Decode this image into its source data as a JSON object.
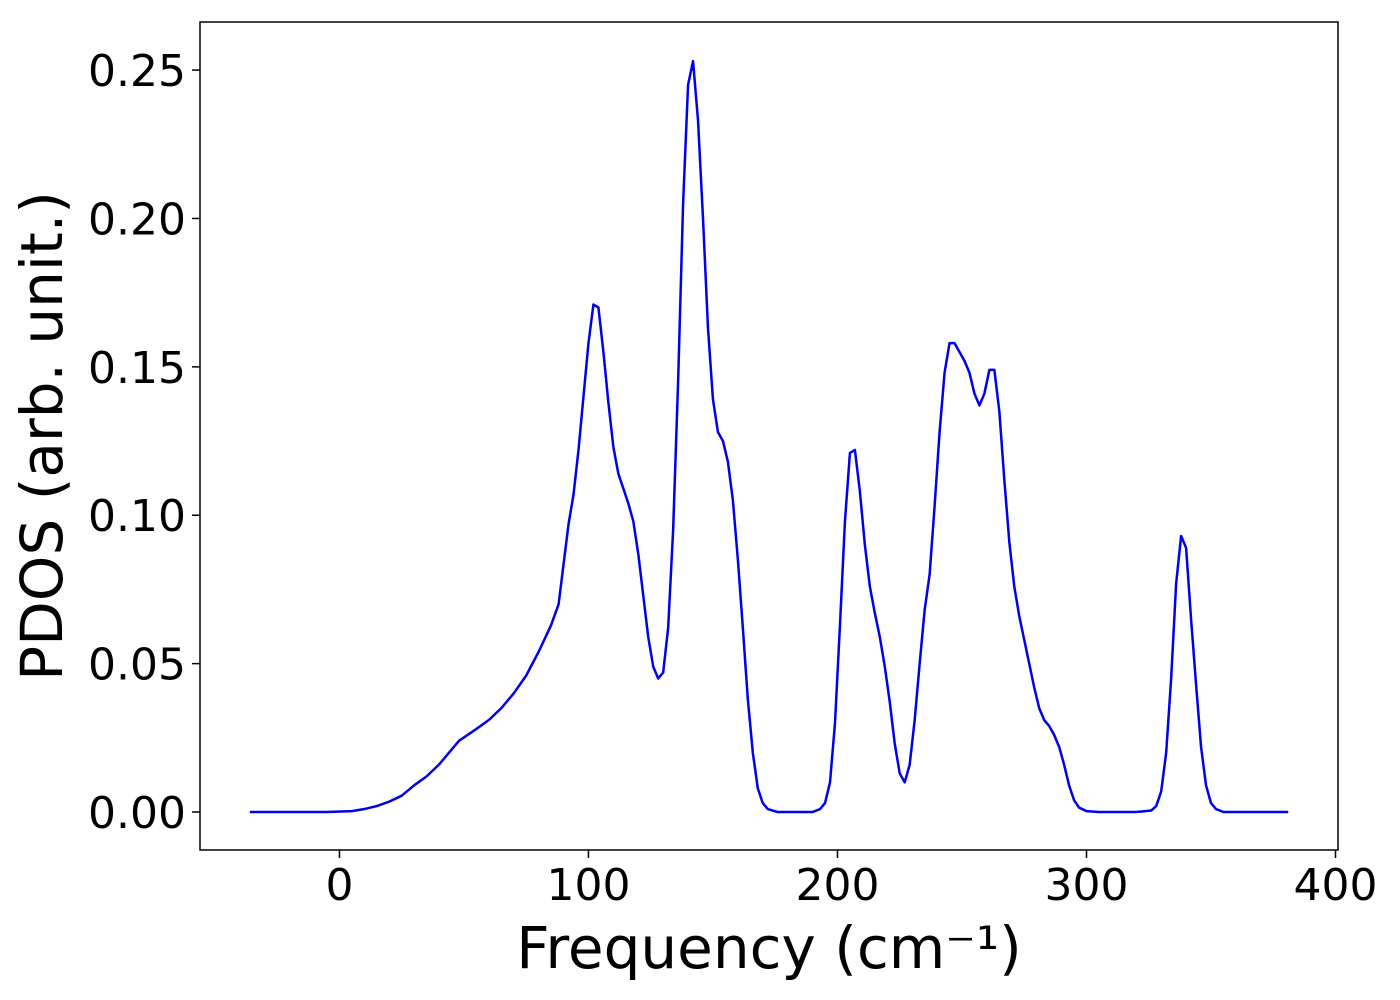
{
  "chart_data": {
    "type": "line",
    "xlabel": "Frequency (cm⁻¹)",
    "ylabel": "PDOS (arb. unit.)",
    "xlim": [
      -56,
      401
    ],
    "ylim": [
      -0.0128,
      0.2662
    ],
    "xticks": [
      0,
      100,
      200,
      300,
      400
    ],
    "yticks": [
      {
        "value": 0,
        "label": "0.00"
      },
      {
        "value": 0.05,
        "label": "0.05"
      },
      {
        "value": 0.1,
        "label": "0.10"
      },
      {
        "value": 0.15,
        "label": "0.15"
      },
      {
        "value": 0.2,
        "label": "0.20"
      },
      {
        "value": 0.25,
        "label": "0.25"
      }
    ],
    "x": [
      -36,
      -20,
      -5,
      5,
      10,
      15,
      20,
      25,
      30,
      35,
      40,
      45,
      48,
      55,
      60,
      65,
      70,
      75,
      80,
      85,
      88,
      92,
      94,
      96,
      98,
      100,
      102,
      104,
      106,
      108,
      110,
      112,
      114,
      116,
      118,
      120,
      122,
      124,
      126,
      128,
      130,
      132,
      134,
      136,
      138,
      140,
      142,
      144,
      146,
      148,
      150,
      152,
      154,
      156,
      158,
      160,
      162,
      164,
      166,
      168,
      170,
      172,
      176,
      190,
      193,
      195,
      197,
      199,
      201,
      203,
      205,
      207,
      209,
      211,
      213,
      215,
      217,
      219,
      221,
      223,
      225,
      227,
      229,
      231,
      233,
      235,
      237,
      239,
      241,
      243,
      245,
      247,
      249,
      251,
      253,
      255,
      257,
      259,
      261,
      263,
      265,
      267,
      269,
      271,
      273,
      275,
      277,
      279,
      281,
      283,
      285,
      287,
      289,
      291,
      293,
      295,
      297,
      300,
      305,
      320,
      326,
      328,
      330,
      332,
      334,
      336,
      338,
      340,
      342,
      344,
      346,
      348,
      350,
      352,
      355,
      381
    ],
    "series": [
      {
        "name": "PDOS",
        "color": "#0000ee",
        "values": [
          0,
          0,
          0,
          0.0003,
          0.001,
          0.002,
          0.0035,
          0.0055,
          0.009,
          0.012,
          0.016,
          0.021,
          0.024,
          0.028,
          0.031,
          0.035,
          0.04,
          0.046,
          0.054,
          0.063,
          0.07,
          0.097,
          0.107,
          0.122,
          0.14,
          0.158,
          0.171,
          0.17,
          0.155,
          0.138,
          0.123,
          0.114,
          0.109,
          0.104,
          0.098,
          0.087,
          0.073,
          0.059,
          0.049,
          0.045,
          0.047,
          0.062,
          0.095,
          0.145,
          0.205,
          0.245,
          0.253,
          0.233,
          0.2,
          0.163,
          0.139,
          0.128,
          0.125,
          0.118,
          0.105,
          0.085,
          0.062,
          0.038,
          0.02,
          0.008,
          0.003,
          0.001,
          0,
          0,
          0.001,
          0.003,
          0.01,
          0.03,
          0.063,
          0.098,
          0.121,
          0.122,
          0.108,
          0.09,
          0.076,
          0.067,
          0.059,
          0.049,
          0.037,
          0.023,
          0.013,
          0.01,
          0.016,
          0.031,
          0.05,
          0.068,
          0.08,
          0.103,
          0.128,
          0.148,
          0.158,
          0.158,
          0.155,
          0.152,
          0.148,
          0.141,
          0.137,
          0.141,
          0.149,
          0.149,
          0.135,
          0.112,
          0.091,
          0.076,
          0.066,
          0.058,
          0.05,
          0.042,
          0.035,
          0.031,
          0.029,
          0.026,
          0.022,
          0.016,
          0.009,
          0.004,
          0.0015,
          0.0003,
          0,
          0,
          0.0005,
          0.002,
          0.007,
          0.02,
          0.045,
          0.077,
          0.093,
          0.089,
          0.065,
          0.043,
          0.022,
          0.009,
          0.003,
          0.001,
          0,
          0
        ]
      }
    ]
  }
}
